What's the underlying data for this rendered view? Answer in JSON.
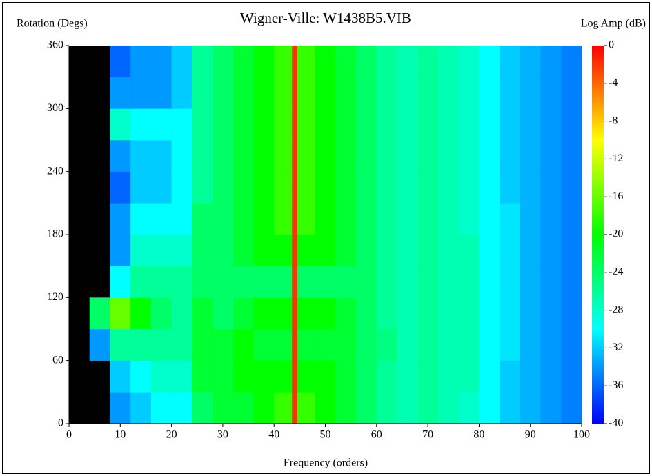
{
  "chart_data": {
    "type": "heatmap",
    "title": "Wigner-Ville: W1438B5.VIB",
    "x_label": "Frequency (orders)",
    "y_label": "Rotation (Degs)",
    "colorbar_label": "Log Amp (dB)",
    "xlim": [
      0,
      100
    ],
    "xticks": [
      0,
      10,
      20,
      30,
      40,
      50,
      60,
      70,
      80,
      90,
      100
    ],
    "ylim": [
      0,
      360
    ],
    "yticks": [
      0,
      60,
      120,
      180,
      240,
      300,
      360
    ],
    "clim": [
      -40,
      0
    ],
    "cticks": [
      0,
      -4,
      -8,
      -12,
      -16,
      -20,
      -24,
      -28,
      -32,
      -36,
      -40
    ],
    "colormap": [
      "#0000ff",
      "#00ffff",
      "#00ff00",
      "#ffff00",
      "#ff0000"
    ],
    "background": "#000000",
    "x_edges": [
      0,
      4,
      8,
      12,
      16,
      20,
      24,
      28,
      32,
      36,
      40,
      43.5,
      44.5,
      48,
      52,
      56,
      60,
      64,
      68,
      72,
      76,
      80,
      84,
      88,
      92,
      96,
      100
    ],
    "y_edges": [
      0,
      30,
      60,
      90,
      120,
      150,
      180,
      210,
      240,
      270,
      300,
      330,
      360
    ],
    "z": [
      [
        null,
        null,
        -34,
        -32,
        -30,
        -30,
        -24,
        -22,
        -22,
        -20,
        -18,
        -2,
        -18,
        -20,
        -22,
        -24,
        -26,
        -27,
        -26,
        -27,
        -28,
        -30,
        -32,
        -33,
        -34,
        -35
      ],
      [
        null,
        null,
        -32,
        -30,
        -28,
        -28,
        -22,
        -22,
        -20,
        -20,
        -20,
        -2,
        -20,
        -20,
        -22,
        -24,
        -26,
        -27,
        -26,
        -27,
        -27,
        -30,
        -32,
        -33,
        -34,
        -35
      ],
      [
        null,
        -34,
        -26,
        -26,
        -26,
        -26,
        -22,
        -22,
        -20,
        -22,
        -22,
        -2,
        -22,
        -22,
        -22,
        -24,
        -25,
        -27,
        -26,
        -27,
        -27,
        -30,
        -31,
        -33,
        -34,
        -35
      ],
      [
        null,
        -24,
        -16,
        -20,
        -24,
        -26,
        -22,
        -24,
        -22,
        -20,
        -20,
        -2,
        -20,
        -20,
        -22,
        -24,
        -26,
        -27,
        -26,
        -27,
        -27,
        -30,
        -31,
        -33,
        -34,
        -35
      ],
      [
        null,
        null,
        -30,
        -26,
        -26,
        -26,
        -24,
        -24,
        -24,
        -24,
        -24,
        -2,
        -24,
        -24,
        -24,
        -24,
        -26,
        -27,
        -26,
        -27,
        -27,
        -30,
        -31,
        -33,
        -34,
        -35
      ],
      [
        null,
        null,
        -34,
        -28,
        -28,
        -28,
        -24,
        -24,
        -22,
        -20,
        -20,
        -2,
        -20,
        -20,
        -22,
        -24,
        -26,
        -27,
        -26,
        -27,
        -27,
        -30,
        -31,
        -33,
        -34,
        -35
      ],
      [
        null,
        null,
        -34,
        -30,
        -30,
        -30,
        -24,
        -24,
        -22,
        -20,
        -18,
        -2,
        -18,
        -20,
        -22,
        -24,
        -26,
        -27,
        -26,
        -27,
        -28,
        -30,
        -31,
        -33,
        -34,
        -35
      ],
      [
        null,
        null,
        -36,
        -32,
        -32,
        -30,
        -26,
        -24,
        -22,
        -20,
        -18,
        -2,
        -18,
        -20,
        -22,
        -24,
        -26,
        -27,
        -26,
        -27,
        -28,
        -30,
        -32,
        -33,
        -34,
        -35
      ],
      [
        null,
        null,
        -34,
        -32,
        -32,
        -30,
        -26,
        -24,
        -22,
        -20,
        -18,
        -2,
        -18,
        -20,
        -22,
        -24,
        -26,
        -27,
        -26,
        -27,
        -28,
        -30,
        -32,
        -33,
        -34,
        -35
      ],
      [
        null,
        null,
        -28,
        -30,
        -30,
        -30,
        -26,
        -24,
        -22,
        -20,
        -18,
        -2,
        -18,
        -20,
        -22,
        -24,
        -26,
        -27,
        -26,
        -27,
        -28,
        -30,
        -32,
        -33,
        -34,
        -35
      ],
      [
        null,
        null,
        -34,
        -34,
        -34,
        -32,
        -26,
        -24,
        -22,
        -20,
        -18,
        -2,
        -18,
        -20,
        -22,
        -24,
        -26,
        -27,
        -26,
        -27,
        -28,
        -30,
        -32,
        -33,
        -34,
        -35
      ],
      [
        null,
        null,
        -36,
        -34,
        -34,
        -32,
        -26,
        -24,
        -22,
        -20,
        -18,
        -2,
        -18,
        -20,
        -22,
        -24,
        -26,
        -27,
        -26,
        -27,
        -28,
        -30,
        -32,
        -33,
        -34,
        -35
      ]
    ]
  }
}
